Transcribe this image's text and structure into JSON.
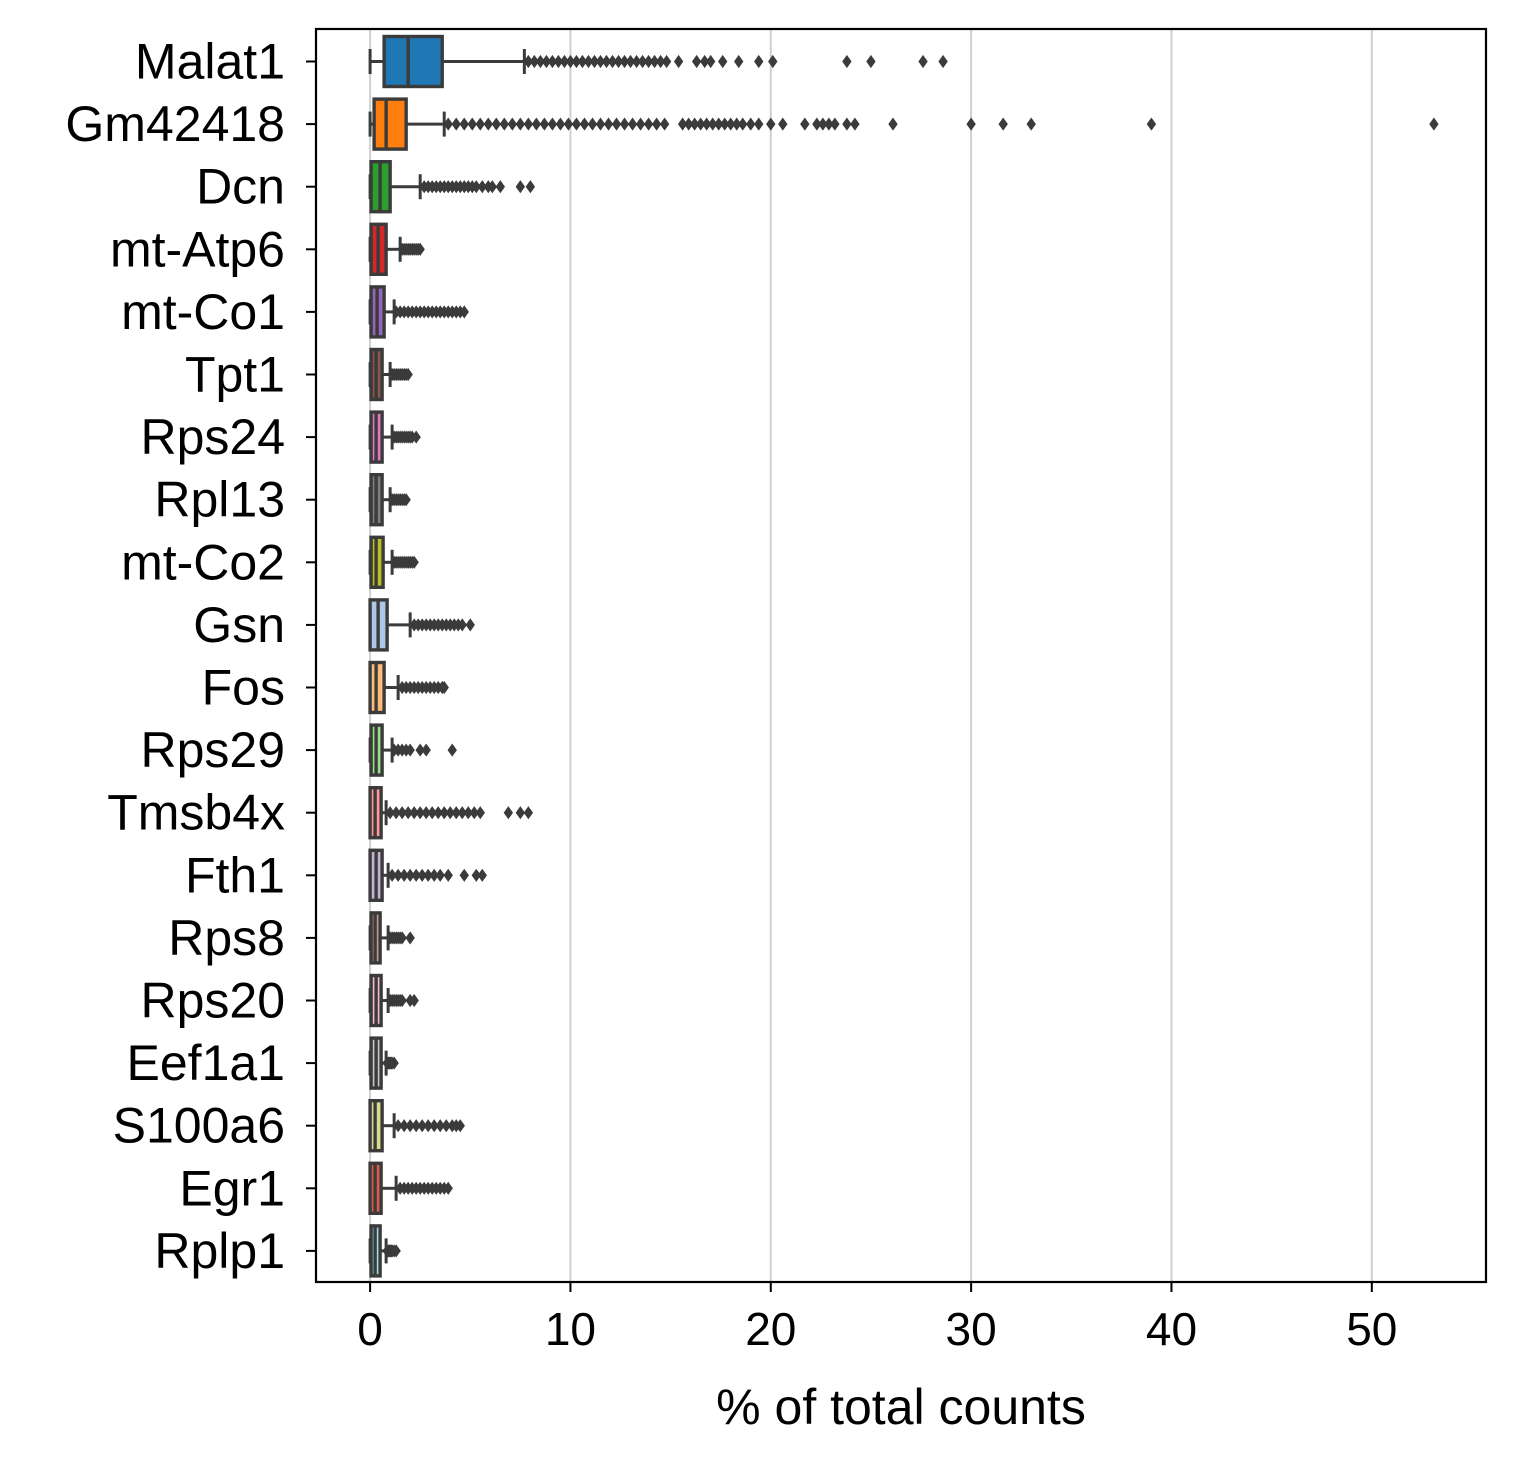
{
  "chart_data": {
    "type": "box",
    "orientation": "horizontal",
    "title": "",
    "xlabel": "% of total counts",
    "ylabel": "",
    "xlim": [
      -2.7,
      55.7
    ],
    "xticks": [
      0,
      10,
      20,
      30,
      40,
      50
    ],
    "grid": "vertical",
    "legend": "none",
    "categories": [
      "Malat1",
      "Gm42418",
      "Dcn",
      "mt-Atp6",
      "mt-Co1",
      "Tpt1",
      "Rps24",
      "Rpl13",
      "mt-Co2",
      "Gsn",
      "Fos",
      "Rps29",
      "Tmsb4x",
      "Fth1",
      "Rps8",
      "Rps20",
      "Eef1a1",
      "S100a6",
      "Egr1",
      "Rplp1"
    ],
    "boxes": [
      {
        "gene": "Malat1",
        "min": 0.0,
        "q1": 0.7,
        "median": 1.9,
        "q3": 3.6,
        "whisker_high": 7.7,
        "color": "#1f77b4",
        "outliers": [
          7.9,
          8.2,
          8.5,
          8.8,
          9.1,
          9.4,
          9.7,
          10.0,
          10.3,
          10.6,
          10.9,
          11.2,
          11.5,
          11.8,
          12.1,
          12.4,
          12.7,
          13.0,
          13.3,
          13.6,
          13.9,
          14.2,
          14.5,
          14.8,
          15.4,
          16.3,
          16.7,
          17.0,
          17.6,
          18.4,
          19.4,
          20.1,
          23.8,
          25.0,
          27.6,
          28.6
        ]
      },
      {
        "gene": "Gm42418",
        "min": 0.0,
        "q1": 0.2,
        "median": 0.8,
        "q3": 1.8,
        "whisker_high": 3.7,
        "color": "#ff7f0e",
        "outliers": [
          3.9,
          4.3,
          4.7,
          5.1,
          5.5,
          5.9,
          6.3,
          6.7,
          7.1,
          7.5,
          7.9,
          8.3,
          8.7,
          9.1,
          9.5,
          9.9,
          10.3,
          10.7,
          11.1,
          11.5,
          11.9,
          12.3,
          12.7,
          13.1,
          13.5,
          13.9,
          14.3,
          14.7,
          15.6,
          15.9,
          16.2,
          16.5,
          16.8,
          17.1,
          17.4,
          17.7,
          18.0,
          18.3,
          18.6,
          19.0,
          19.4,
          20.0,
          20.6,
          21.7,
          22.3,
          22.6,
          22.9,
          23.2,
          23.8,
          24.2,
          26.1,
          30.0,
          31.6,
          33.0,
          39.0,
          53.1
        ]
      },
      {
        "gene": "Dcn",
        "min": 0.0,
        "q1": 0.05,
        "median": 0.5,
        "q3": 1.0,
        "whisker_high": 2.5,
        "color": "#2ca02c",
        "outliers": [
          2.7,
          2.9,
          3.1,
          3.3,
          3.5,
          3.7,
          3.9,
          4.1,
          4.3,
          4.5,
          4.7,
          4.9,
          5.1,
          5.3,
          5.6,
          5.9,
          6.1,
          6.5,
          7.5,
          8.0
        ]
      },
      {
        "gene": "mt-Atp6",
        "min": 0.0,
        "q1": 0.05,
        "median": 0.4,
        "q3": 0.8,
        "whisker_high": 1.5,
        "color": "#d62728",
        "outliers": [
          1.6,
          1.7,
          1.8,
          1.9,
          2.0,
          2.1,
          2.2,
          2.3,
          2.4,
          2.5
        ]
      },
      {
        "gene": "mt-Co1",
        "min": 0.0,
        "q1": 0.05,
        "median": 0.35,
        "q3": 0.7,
        "whisker_high": 1.2,
        "color": "#9467bd",
        "outliers": [
          1.3,
          1.5,
          1.7,
          1.9,
          2.1,
          2.3,
          2.5,
          2.7,
          2.9,
          3.1,
          3.3,
          3.5,
          3.7,
          3.9,
          4.1,
          4.3,
          4.5,
          4.7
        ]
      },
      {
        "gene": "Tpt1",
        "min": 0.0,
        "q1": 0.05,
        "median": 0.3,
        "q3": 0.6,
        "whisker_high": 1.0,
        "color": "#8c564b",
        "outliers": [
          1.1,
          1.2,
          1.3,
          1.4,
          1.5,
          1.6,
          1.7,
          1.8,
          1.9
        ]
      },
      {
        "gene": "Rps24",
        "min": 0.0,
        "q1": 0.05,
        "median": 0.3,
        "q3": 0.6,
        "whisker_high": 1.1,
        "color": "#e377c2",
        "outliers": [
          1.2,
          1.3,
          1.4,
          1.5,
          1.6,
          1.7,
          1.8,
          1.9,
          2.0,
          2.1,
          2.3
        ]
      },
      {
        "gene": "Rpl13",
        "min": 0.0,
        "q1": 0.05,
        "median": 0.3,
        "q3": 0.6,
        "whisker_high": 1.0,
        "color": "#7f7f7f",
        "outliers": [
          1.1,
          1.2,
          1.3,
          1.4,
          1.5,
          1.6,
          1.7,
          1.8
        ]
      },
      {
        "gene": "mt-Co2",
        "min": 0.0,
        "q1": 0.05,
        "median": 0.3,
        "q3": 0.65,
        "whisker_high": 1.1,
        "color": "#bcbd22",
        "outliers": [
          1.2,
          1.3,
          1.4,
          1.5,
          1.6,
          1.7,
          1.8,
          1.9,
          2.0,
          2.1,
          2.2
        ]
      },
      {
        "gene": "Gsn",
        "min": 0.0,
        "q1": 0.0,
        "median": 0.4,
        "q3": 0.85,
        "whisker_high": 2.0,
        "color": "#aec7e8",
        "outliers": [
          2.2,
          2.4,
          2.6,
          2.8,
          3.0,
          3.2,
          3.4,
          3.6,
          3.8,
          4.0,
          4.2,
          4.4,
          4.6,
          5.0
        ]
      },
      {
        "gene": "Fos",
        "min": 0.0,
        "q1": 0.0,
        "median": 0.3,
        "q3": 0.7,
        "whisker_high": 1.4,
        "color": "#ffbb78",
        "outliers": [
          1.6,
          1.8,
          2.0,
          2.2,
          2.4,
          2.6,
          2.8,
          3.0,
          3.2,
          3.4,
          3.6,
          3.7
        ]
      },
      {
        "gene": "Rps29",
        "min": 0.0,
        "q1": 0.05,
        "median": 0.3,
        "q3": 0.6,
        "whisker_high": 1.1,
        "color": "#98df8a",
        "outliers": [
          1.2,
          1.4,
          1.6,
          1.8,
          2.0,
          2.5,
          2.8,
          4.1
        ]
      },
      {
        "gene": "Tmsb4x",
        "min": 0.0,
        "q1": 0.0,
        "median": 0.25,
        "q3": 0.55,
        "whisker_high": 0.8,
        "color": "#ff9896",
        "outliers": [
          1.0,
          1.3,
          1.6,
          1.9,
          2.2,
          2.5,
          2.8,
          3.1,
          3.4,
          3.7,
          4.0,
          4.3,
          4.6,
          4.9,
          5.2,
          5.5,
          6.9,
          7.5,
          7.9
        ]
      },
      {
        "gene": "Fth1",
        "min": 0.0,
        "q1": 0.0,
        "median": 0.3,
        "q3": 0.6,
        "whisker_high": 0.9,
        "color": "#c5b0d5",
        "outliers": [
          1.1,
          1.4,
          1.7,
          2.0,
          2.3,
          2.6,
          2.9,
          3.2,
          3.5,
          3.9,
          4.7,
          5.3,
          5.6
        ]
      },
      {
        "gene": "Rps8",
        "min": 0.0,
        "q1": 0.05,
        "median": 0.25,
        "q3": 0.5,
        "whisker_high": 0.9,
        "color": "#c49c94",
        "outliers": [
          1.0,
          1.1,
          1.2,
          1.3,
          1.4,
          1.5,
          1.6,
          2.0
        ]
      },
      {
        "gene": "Rps20",
        "min": 0.0,
        "q1": 0.05,
        "median": 0.3,
        "q3": 0.55,
        "whisker_high": 0.9,
        "color": "#f7b6d2",
        "outliers": [
          1.0,
          1.1,
          1.2,
          1.3,
          1.4,
          1.5,
          1.6,
          2.0,
          2.2
        ]
      },
      {
        "gene": "Eef1a1",
        "min": 0.0,
        "q1": 0.05,
        "median": 0.3,
        "q3": 0.55,
        "whisker_high": 0.8,
        "color": "#c7c7c7",
        "outliers": [
          0.85,
          0.9,
          0.95,
          1.0,
          1.05,
          1.1,
          1.2
        ]
      },
      {
        "gene": "S100a6",
        "min": 0.0,
        "q1": 0.0,
        "median": 0.25,
        "q3": 0.6,
        "whisker_high": 1.2,
        "color": "#dbdb8d",
        "outliers": [
          1.4,
          1.7,
          2.0,
          2.3,
          2.6,
          2.9,
          3.2,
          3.5,
          3.8,
          4.1,
          4.3,
          4.5
        ]
      },
      {
        "gene": "Egr1",
        "min": 0.0,
        "q1": 0.0,
        "median": 0.25,
        "q3": 0.55,
        "whisker_high": 1.3,
        "color": "#e05a4c",
        "outliers": [
          1.5,
          1.7,
          1.9,
          2.1,
          2.3,
          2.5,
          2.7,
          2.9,
          3.1,
          3.3,
          3.5,
          3.7,
          3.9
        ]
      },
      {
        "gene": "Rplp1",
        "min": 0.0,
        "q1": 0.05,
        "median": 0.25,
        "q3": 0.5,
        "whisker_high": 0.8,
        "color": "#9edae5",
        "outliers": [
          0.85,
          0.9,
          0.95,
          1.0,
          1.05,
          1.1,
          1.2,
          1.3
        ]
      }
    ],
    "style": {
      "box_edge_color": "#3b3b3b",
      "grid_color": "#d0d0d0",
      "axis_color": "#000000",
      "background": "#ffffff"
    }
  }
}
